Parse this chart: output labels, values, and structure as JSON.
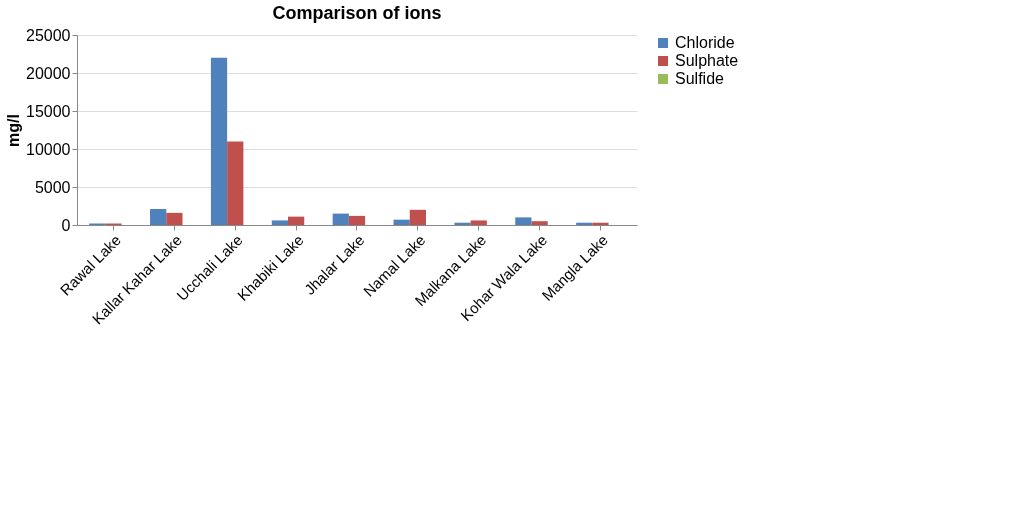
{
  "chart_data": {
    "type": "bar",
    "title": "Comparison of ions",
    "ylabel": "mg/l",
    "categories": [
      "Rawal Lake",
      "Kallar Kahar Lake",
      "Ucchali Lake",
      "Khabiki Lake",
      "Jhalar Lake",
      "Namal Lake",
      "Malkana Lake",
      "Kohar Wala Lake",
      "Mangla Lake"
    ],
    "series": [
      {
        "name": "Chloride",
        "color": "#4f81bd",
        "values": [
          200,
          2100,
          22000,
          600,
          1500,
          700,
          300,
          1000,
          300
        ]
      },
      {
        "name": "Sulphate",
        "color": "#c0504d",
        "values": [
          200,
          1600,
          11000,
          1100,
          1200,
          2000,
          600,
          500,
          300
        ]
      },
      {
        "name": "Sulfide",
        "color": "#9bbb59",
        "values": [
          0,
          0,
          0,
          0,
          0,
          0,
          0,
          0,
          0
        ]
      }
    ],
    "ylim": [
      0,
      25000
    ],
    "yticks": [
      0,
      5000,
      10000,
      15000,
      20000,
      25000
    ],
    "grid": "y",
    "legend": "right"
  }
}
